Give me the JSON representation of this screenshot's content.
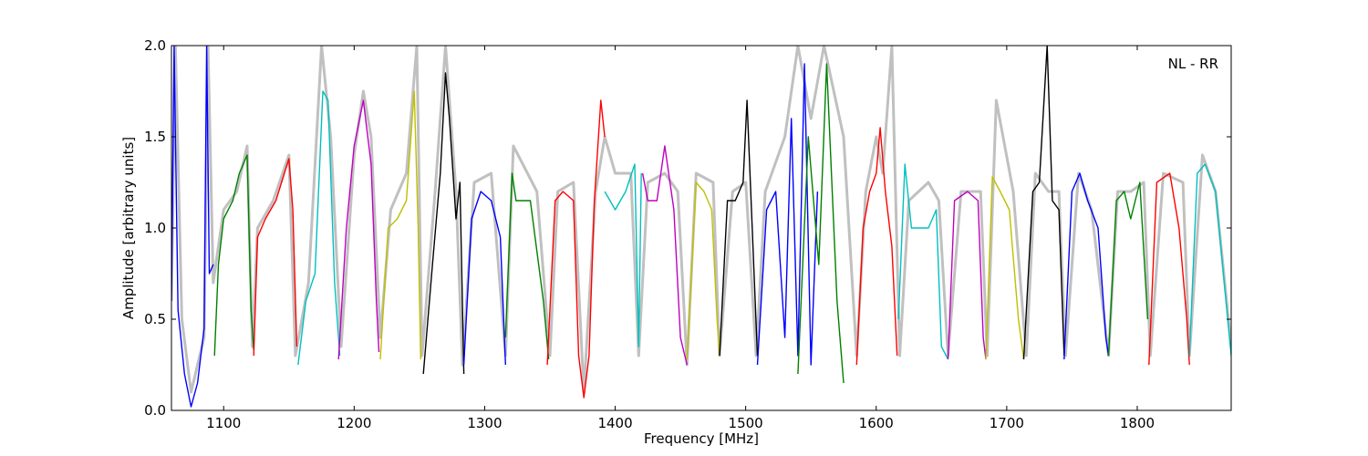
{
  "chart_data": {
    "type": "line",
    "xlabel": "Frequency [MHz]",
    "ylabel": "Amplitude [arbitrary units]",
    "annotation": "NL - RR",
    "xlim": [
      1060,
      1872
    ],
    "ylim": [
      0,
      2.0
    ],
    "x_ticks": [
      1100,
      1200,
      1300,
      1400,
      1500,
      1600,
      1700,
      1800
    ],
    "x_tick_labels": [
      "1100",
      "1200",
      "1300",
      "1400",
      "1500",
      "1600",
      "1700",
      "1800"
    ],
    "y_ticks": [
      0.0,
      0.5,
      1.0,
      1.5,
      2.0
    ],
    "y_tick_labels": [
      "0.0",
      "0.5",
      "1.0",
      "1.5",
      "2.0"
    ],
    "grid": false,
    "colors": {
      "envelope": "#c0c0c0",
      "blue": "#0000ff",
      "green": "#008000",
      "red": "#ff0000",
      "cyan": "#00bfbf",
      "magenta": "#bf00bf",
      "olive": "#bfbf00",
      "black": "#000000"
    },
    "envelope_points": [
      [
        1060,
        0.6
      ],
      [
        1063,
        2.0
      ],
      [
        1068,
        0.5
      ],
      [
        1075,
        0.1
      ],
      [
        1085,
        0.4
      ],
      [
        1088,
        2.0
      ],
      [
        1092,
        0.7
      ],
      [
        1100,
        1.1
      ],
      [
        1110,
        1.2
      ],
      [
        1118,
        1.45
      ],
      [
        1122,
        0.35
      ],
      [
        1126,
        1.0
      ],
      [
        1138,
        1.15
      ],
      [
        1150,
        1.4
      ],
      [
        1155,
        0.3
      ],
      [
        1165,
        0.7
      ],
      [
        1175,
        2.0
      ],
      [
        1182,
        1.5
      ],
      [
        1190,
        0.35
      ],
      [
        1200,
        1.4
      ],
      [
        1207,
        1.75
      ],
      [
        1213,
        1.5
      ],
      [
        1220,
        0.4
      ],
      [
        1228,
        1.1
      ],
      [
        1240,
        1.3
      ],
      [
        1248,
        2.0
      ],
      [
        1252,
        0.3
      ],
      [
        1262,
        1.2
      ],
      [
        1270,
        2.0
      ],
      [
        1278,
        1.2
      ],
      [
        1283,
        0.25
      ],
      [
        1292,
        1.25
      ],
      [
        1305,
        1.3
      ],
      [
        1316,
        0.3
      ],
      [
        1322,
        1.45
      ],
      [
        1340,
        1.2
      ],
      [
        1350,
        0.3
      ],
      [
        1356,
        1.2
      ],
      [
        1368,
        1.25
      ],
      [
        1376,
        0.1
      ],
      [
        1385,
        1.2
      ],
      [
        1392,
        1.5
      ],
      [
        1400,
        1.3
      ],
      [
        1412,
        1.3
      ],
      [
        1418,
        0.3
      ],
      [
        1425,
        1.25
      ],
      [
        1438,
        1.3
      ],
      [
        1448,
        1.2
      ],
      [
        1455,
        0.25
      ],
      [
        1462,
        1.3
      ],
      [
        1475,
        1.25
      ],
      [
        1480,
        0.3
      ],
      [
        1490,
        1.2
      ],
      [
        1500,
        1.25
      ],
      [
        1508,
        0.3
      ],
      [
        1515,
        1.2
      ],
      [
        1530,
        1.5
      ],
      [
        1540,
        2.0
      ],
      [
        1550,
        1.6
      ],
      [
        1560,
        2.0
      ],
      [
        1575,
        1.5
      ],
      [
        1585,
        0.3
      ],
      [
        1592,
        1.2
      ],
      [
        1600,
        1.5
      ],
      [
        1605,
        1.3
      ],
      [
        1612,
        2.0
      ],
      [
        1618,
        0.3
      ],
      [
        1625,
        1.15
      ],
      [
        1640,
        1.25
      ],
      [
        1648,
        1.15
      ],
      [
        1655,
        0.3
      ],
      [
        1665,
        1.2
      ],
      [
        1680,
        1.2
      ],
      [
        1685,
        0.3
      ],
      [
        1692,
        1.7
      ],
      [
        1705,
        1.2
      ],
      [
        1715,
        0.3
      ],
      [
        1722,
        1.3
      ],
      [
        1732,
        1.2
      ],
      [
        1740,
        1.2
      ],
      [
        1745,
        0.3
      ],
      [
        1755,
        1.3
      ],
      [
        1765,
        1.1
      ],
      [
        1778,
        0.3
      ],
      [
        1785,
        1.2
      ],
      [
        1795,
        1.2
      ],
      [
        1805,
        1.25
      ],
      [
        1810,
        0.3
      ],
      [
        1820,
        1.3
      ],
      [
        1835,
        1.25
      ],
      [
        1840,
        0.3
      ],
      [
        1850,
        1.4
      ],
      [
        1860,
        1.2
      ],
      [
        1872,
        0.35
      ]
    ],
    "series": [
      {
        "color": "blue",
        "points": [
          [
            1060,
            0.6
          ],
          [
            1062,
            2.0
          ],
          [
            1065,
            0.55
          ],
          [
            1070,
            0.2
          ],
          [
            1075,
            0.02
          ],
          [
            1080,
            0.15
          ],
          [
            1085,
            0.45
          ],
          [
            1087,
            2.0
          ],
          [
            1089,
            0.75
          ],
          [
            1092,
            0.8
          ]
        ]
      },
      {
        "color": "green",
        "points": [
          [
            1093,
            0.3
          ],
          [
            1096,
            0.8
          ],
          [
            1100,
            1.05
          ],
          [
            1107,
            1.15
          ],
          [
            1112,
            1.3
          ],
          [
            1118,
            1.4
          ],
          [
            1121,
            0.55
          ],
          [
            1123,
            0.33
          ]
        ]
      },
      {
        "color": "red",
        "points": [
          [
            1123,
            0.3
          ],
          [
            1126,
            0.95
          ],
          [
            1132,
            1.05
          ],
          [
            1140,
            1.15
          ],
          [
            1150,
            1.38
          ],
          [
            1153,
            1.1
          ],
          [
            1156,
            0.35
          ]
        ]
      },
      {
        "color": "cyan",
        "points": [
          [
            1157,
            0.25
          ],
          [
            1163,
            0.6
          ],
          [
            1170,
            0.75
          ],
          [
            1176,
            1.75
          ],
          [
            1180,
            1.7
          ],
          [
            1185,
            0.7
          ],
          [
            1189,
            0.3
          ]
        ]
      },
      {
        "color": "magenta",
        "points": [
          [
            1188,
            0.28
          ],
          [
            1194,
            1.0
          ],
          [
            1200,
            1.45
          ],
          [
            1207,
            1.7
          ],
          [
            1213,
            1.35
          ],
          [
            1217,
            0.6
          ],
          [
            1219,
            0.32
          ]
        ]
      },
      {
        "color": "olive",
        "points": [
          [
            1220,
            0.28
          ],
          [
            1226,
            1.0
          ],
          [
            1233,
            1.05
          ],
          [
            1240,
            1.15
          ],
          [
            1246,
            1.75
          ],
          [
            1249,
            1.0
          ],
          [
            1251,
            0.28
          ]
        ]
      },
      {
        "color": "black",
        "points": [
          [
            1253,
            0.2
          ],
          [
            1260,
            0.8
          ],
          [
            1266,
            1.3
          ],
          [
            1270,
            1.85
          ],
          [
            1273,
            1.6
          ],
          [
            1278,
            1.05
          ],
          [
            1281,
            1.25
          ],
          [
            1284,
            0.2
          ]
        ]
      },
      {
        "color": "blue",
        "points": [
          [
            1284,
            0.25
          ],
          [
            1290,
            1.05
          ],
          [
            1297,
            1.2
          ],
          [
            1305,
            1.15
          ],
          [
            1312,
            0.95
          ],
          [
            1316,
            0.25
          ]
        ]
      },
      {
        "color": "green",
        "points": [
          [
            1316,
            0.4
          ],
          [
            1321,
            1.3
          ],
          [
            1324,
            1.15
          ],
          [
            1335,
            1.15
          ],
          [
            1345,
            0.6
          ],
          [
            1349,
            0.28
          ]
        ]
      },
      {
        "color": "red",
        "points": [
          [
            1348,
            0.25
          ],
          [
            1354,
            1.15
          ],
          [
            1360,
            1.2
          ],
          [
            1368,
            1.15
          ],
          [
            1372,
            0.3
          ],
          [
            1376,
            0.07
          ],
          [
            1380,
            0.3
          ],
          [
            1384,
            1.15
          ],
          [
            1389,
            1.7
          ],
          [
            1392,
            1.5
          ]
        ]
      },
      {
        "color": "cyan",
        "points": [
          [
            1392,
            1.2
          ],
          [
            1400,
            1.1
          ],
          [
            1408,
            1.2
          ],
          [
            1415,
            1.35
          ],
          [
            1418,
            0.35
          ],
          [
            1420,
            1.3
          ]
        ]
      },
      {
        "color": "magenta",
        "points": [
          [
            1421,
            1.3
          ],
          [
            1425,
            1.15
          ],
          [
            1432,
            1.15
          ],
          [
            1438,
            1.45
          ],
          [
            1445,
            1.1
          ],
          [
            1450,
            0.4
          ],
          [
            1455,
            0.25
          ]
        ]
      },
      {
        "color": "olive",
        "points": [
          [
            1455,
            0.28
          ],
          [
            1462,
            1.25
          ],
          [
            1468,
            1.2
          ],
          [
            1474,
            1.1
          ],
          [
            1478,
            0.5
          ],
          [
            1480,
            0.3
          ]
        ]
      },
      {
        "color": "black",
        "points": [
          [
            1480,
            0.3
          ],
          [
            1486,
            1.15
          ],
          [
            1492,
            1.15
          ],
          [
            1498,
            1.25
          ],
          [
            1501,
            1.7
          ],
          [
            1505,
            1.0
          ],
          [
            1509,
            0.3
          ]
        ]
      },
      {
        "color": "blue",
        "points": [
          [
            1509,
            0.25
          ],
          [
            1516,
            1.1
          ],
          [
            1523,
            1.2
          ],
          [
            1530,
            0.4
          ],
          [
            1535,
            1.6
          ],
          [
            1540,
            0.3
          ],
          [
            1545,
            1.9
          ],
          [
            1550,
            0.25
          ],
          [
            1555,
            1.2
          ]
        ]
      },
      {
        "color": "green",
        "points": [
          [
            1540,
            0.2
          ],
          [
            1548,
            1.5
          ],
          [
            1556,
            0.8
          ],
          [
            1562,
            1.9
          ],
          [
            1570,
            0.6
          ],
          [
            1575,
            0.15
          ]
        ]
      },
      {
        "color": "red",
        "points": [
          [
            1585,
            0.25
          ],
          [
            1590,
            1.0
          ],
          [
            1595,
            1.2
          ],
          [
            1600,
            1.3
          ],
          [
            1603,
            1.55
          ],
          [
            1607,
            1.2
          ],
          [
            1612,
            0.9
          ],
          [
            1616,
            0.3
          ]
        ]
      },
      {
        "color": "cyan",
        "points": [
          [
            1617,
            0.5
          ],
          [
            1622,
            1.35
          ],
          [
            1627,
            1.0
          ],
          [
            1640,
            1.0
          ],
          [
            1646,
            1.1
          ],
          [
            1650,
            0.35
          ],
          [
            1655,
            0.28
          ]
        ]
      },
      {
        "color": "magenta",
        "points": [
          [
            1655,
            0.28
          ],
          [
            1660,
            1.15
          ],
          [
            1670,
            1.2
          ],
          [
            1678,
            1.15
          ],
          [
            1682,
            0.4
          ],
          [
            1684,
            0.28
          ]
        ]
      },
      {
        "color": "olive",
        "points": [
          [
            1684,
            0.28
          ],
          [
            1689,
            1.28
          ],
          [
            1695,
            1.2
          ],
          [
            1702,
            1.1
          ],
          [
            1709,
            0.5
          ],
          [
            1713,
            0.28
          ]
        ]
      },
      {
        "color": "black",
        "points": [
          [
            1713,
            0.28
          ],
          [
            1720,
            1.2
          ],
          [
            1725,
            1.25
          ],
          [
            1731,
            2.0
          ],
          [
            1735,
            1.15
          ],
          [
            1740,
            1.1
          ],
          [
            1744,
            0.3
          ]
        ]
      },
      {
        "color": "blue",
        "points": [
          [
            1744,
            0.28
          ],
          [
            1750,
            1.2
          ],
          [
            1756,
            1.3
          ],
          [
            1762,
            1.15
          ],
          [
            1770,
            1.0
          ],
          [
            1776,
            0.4
          ],
          [
            1778,
            0.3
          ]
        ]
      },
      {
        "color": "green",
        "points": [
          [
            1778,
            0.3
          ],
          [
            1784,
            1.15
          ],
          [
            1790,
            1.2
          ],
          [
            1795,
            1.05
          ],
          [
            1802,
            1.25
          ],
          [
            1808,
            0.5
          ]
        ]
      },
      {
        "color": "red",
        "points": [
          [
            1809,
            0.25
          ],
          [
            1815,
            1.25
          ],
          [
            1825,
            1.3
          ],
          [
            1832,
            1.0
          ],
          [
            1838,
            0.5
          ],
          [
            1840,
            0.25
          ]
        ]
      },
      {
        "color": "cyan",
        "points": [
          [
            1840,
            0.3
          ],
          [
            1846,
            1.3
          ],
          [
            1852,
            1.35
          ],
          [
            1860,
            1.2
          ],
          [
            1868,
            0.6
          ],
          [
            1872,
            0.3
          ]
        ]
      }
    ]
  }
}
